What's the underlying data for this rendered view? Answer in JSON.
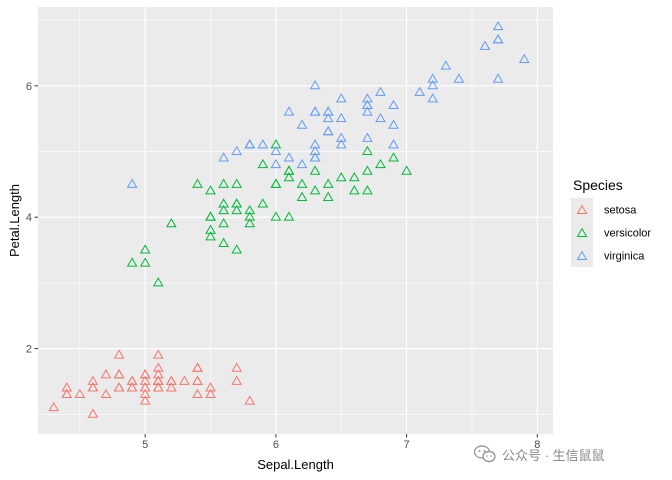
{
  "chart_data": {
    "type": "scatter",
    "title": "",
    "xlabel": "Sepal.Length",
    "ylabel": "Petal.Length",
    "xlim": [
      4.18,
      8.12
    ],
    "ylim": [
      0.7,
      7.2
    ],
    "xticks": [
      5,
      6,
      7,
      8
    ],
    "yticks": [
      2,
      4,
      6
    ],
    "grid": true,
    "marker": "open-triangle",
    "legend": {
      "title": "Species",
      "position": "right"
    },
    "series": [
      {
        "name": "setosa",
        "color": "#F8766D",
        "points": [
          [
            5.1,
            1.4
          ],
          [
            4.9,
            1.4
          ],
          [
            4.7,
            1.3
          ],
          [
            4.6,
            1.5
          ],
          [
            5.0,
            1.4
          ],
          [
            5.4,
            1.7
          ],
          [
            4.6,
            1.4
          ],
          [
            5.0,
            1.5
          ],
          [
            4.4,
            1.4
          ],
          [
            4.9,
            1.5
          ],
          [
            5.4,
            1.5
          ],
          [
            4.8,
            1.6
          ],
          [
            4.8,
            1.4
          ],
          [
            4.3,
            1.1
          ],
          [
            5.8,
            1.2
          ],
          [
            5.7,
            1.5
          ],
          [
            5.4,
            1.3
          ],
          [
            5.1,
            1.4
          ],
          [
            5.7,
            1.7
          ],
          [
            5.1,
            1.5
          ],
          [
            5.4,
            1.7
          ],
          [
            5.1,
            1.5
          ],
          [
            4.6,
            1.0
          ],
          [
            5.1,
            1.7
          ],
          [
            4.8,
            1.9
          ],
          [
            5.0,
            1.6
          ],
          [
            5.0,
            1.6
          ],
          [
            5.2,
            1.5
          ],
          [
            5.2,
            1.4
          ],
          [
            4.7,
            1.6
          ],
          [
            4.8,
            1.6
          ],
          [
            5.4,
            1.5
          ],
          [
            5.2,
            1.5
          ],
          [
            5.5,
            1.4
          ],
          [
            4.9,
            1.5
          ],
          [
            5.0,
            1.2
          ],
          [
            5.5,
            1.3
          ],
          [
            4.9,
            1.4
          ],
          [
            4.4,
            1.3
          ],
          [
            5.1,
            1.5
          ],
          [
            5.0,
            1.3
          ],
          [
            4.5,
            1.3
          ],
          [
            4.4,
            1.3
          ],
          [
            5.0,
            1.6
          ],
          [
            5.1,
            1.9
          ],
          [
            4.8,
            1.4
          ],
          [
            5.1,
            1.6
          ],
          [
            4.6,
            1.4
          ],
          [
            5.3,
            1.5
          ],
          [
            5.0,
            1.4
          ]
        ]
      },
      {
        "name": "versicolor",
        "color": "#00BA38",
        "points": [
          [
            7.0,
            4.7
          ],
          [
            6.4,
            4.5
          ],
          [
            6.9,
            4.9
          ],
          [
            5.5,
            4.0
          ],
          [
            6.5,
            4.6
          ],
          [
            5.7,
            4.5
          ],
          [
            6.3,
            4.7
          ],
          [
            4.9,
            3.3
          ],
          [
            6.6,
            4.6
          ],
          [
            5.2,
            3.9
          ],
          [
            5.0,
            3.5
          ],
          [
            5.9,
            4.2
          ],
          [
            6.0,
            4.0
          ],
          [
            6.1,
            4.7
          ],
          [
            5.6,
            3.6
          ],
          [
            6.7,
            4.4
          ],
          [
            5.6,
            4.5
          ],
          [
            5.8,
            4.1
          ],
          [
            6.2,
            4.5
          ],
          [
            5.6,
            3.9
          ],
          [
            5.9,
            4.8
          ],
          [
            6.1,
            4.0
          ],
          [
            6.3,
            4.9
          ],
          [
            6.1,
            4.7
          ],
          [
            6.4,
            4.3
          ],
          [
            6.6,
            4.4
          ],
          [
            6.8,
            4.8
          ],
          [
            6.7,
            5.0
          ],
          [
            6.0,
            4.5
          ],
          [
            5.7,
            3.5
          ],
          [
            5.5,
            3.8
          ],
          [
            5.5,
            3.7
          ],
          [
            5.8,
            3.9
          ],
          [
            6.0,
            5.1
          ],
          [
            5.4,
            4.5
          ],
          [
            6.0,
            4.5
          ],
          [
            6.7,
            4.7
          ],
          [
            6.3,
            4.4
          ],
          [
            5.6,
            4.1
          ],
          [
            5.5,
            4.0
          ],
          [
            5.5,
            4.4
          ],
          [
            6.1,
            4.6
          ],
          [
            5.8,
            4.0
          ],
          [
            5.0,
            3.3
          ],
          [
            5.6,
            4.2
          ],
          [
            5.7,
            4.2
          ],
          [
            5.7,
            4.2
          ],
          [
            6.2,
            4.3
          ],
          [
            5.1,
            3.0
          ],
          [
            5.7,
            4.1
          ]
        ]
      },
      {
        "name": "virginica",
        "color": "#619CFF",
        "points": [
          [
            6.3,
            6.0
          ],
          [
            5.8,
            5.1
          ],
          [
            7.1,
            5.9
          ],
          [
            6.3,
            5.6
          ],
          [
            6.5,
            5.8
          ],
          [
            7.6,
            6.6
          ],
          [
            4.9,
            4.5
          ],
          [
            7.3,
            6.3
          ],
          [
            6.7,
            5.8
          ],
          [
            7.2,
            6.1
          ],
          [
            6.5,
            5.1
          ],
          [
            6.4,
            5.3
          ],
          [
            6.8,
            5.5
          ],
          [
            5.7,
            5.0
          ],
          [
            5.8,
            5.1
          ],
          [
            6.4,
            5.3
          ],
          [
            6.5,
            5.5
          ],
          [
            7.7,
            6.7
          ],
          [
            7.7,
            6.9
          ],
          [
            6.0,
            5.0
          ],
          [
            6.9,
            5.7
          ],
          [
            5.6,
            4.9
          ],
          [
            7.7,
            6.7
          ],
          [
            6.3,
            4.9
          ],
          [
            6.7,
            5.7
          ],
          [
            7.2,
            6.0
          ],
          [
            6.2,
            4.8
          ],
          [
            6.1,
            4.9
          ],
          [
            6.4,
            5.6
          ],
          [
            7.2,
            5.8
          ],
          [
            7.4,
            6.1
          ],
          [
            7.9,
            6.4
          ],
          [
            6.4,
            5.6
          ],
          [
            6.3,
            5.1
          ],
          [
            6.1,
            5.6
          ],
          [
            7.7,
            6.1
          ],
          [
            6.3,
            5.6
          ],
          [
            6.4,
            5.5
          ],
          [
            6.0,
            4.8
          ],
          [
            6.9,
            5.4
          ],
          [
            6.7,
            5.6
          ],
          [
            6.9,
            5.1
          ],
          [
            5.8,
            5.1
          ],
          [
            6.8,
            5.9
          ],
          [
            6.7,
            5.7
          ],
          [
            6.7,
            5.2
          ],
          [
            6.3,
            5.0
          ],
          [
            6.5,
            5.2
          ],
          [
            6.2,
            5.4
          ],
          [
            5.9,
            5.1
          ]
        ]
      }
    ]
  },
  "watermark": {
    "text": "公众号 · 生信鼠鼠",
    "icon": "wechat-icon"
  }
}
